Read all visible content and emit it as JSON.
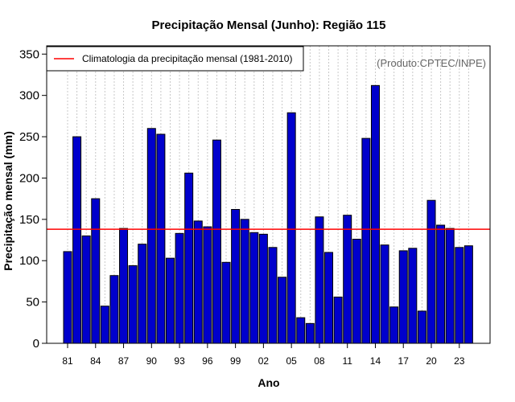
{
  "chart_data": {
    "type": "bar",
    "title": "Precipitação Mensal (Junho): Região 115",
    "xlabel": "Ano",
    "ylabel": "Precipitação mensal (mm)",
    "ylim": [
      0,
      360
    ],
    "yticks": [
      0,
      50,
      100,
      150,
      200,
      250,
      300,
      350
    ],
    "xtick_labels": [
      "81",
      "84",
      "87",
      "90",
      "93",
      "96",
      "99",
      "02",
      "05",
      "08",
      "11",
      "14",
      "17",
      "20",
      "23"
    ],
    "categories": [
      "1981",
      "1982",
      "1983",
      "1984",
      "1985",
      "1986",
      "1987",
      "1988",
      "1989",
      "1990",
      "1991",
      "1992",
      "1993",
      "1994",
      "1995",
      "1996",
      "1997",
      "1998",
      "1999",
      "2000",
      "2001",
      "2002",
      "2003",
      "2004",
      "2005",
      "2006",
      "2007",
      "2008",
      "2009",
      "2010",
      "2011",
      "2012",
      "2013",
      "2014",
      "2015",
      "2016",
      "2017",
      "2018",
      "2019",
      "2020",
      "2021",
      "2022",
      "2023",
      "2024"
    ],
    "values": [
      111,
      250,
      130,
      175,
      45,
      82,
      139,
      94,
      120,
      260,
      253,
      103,
      133,
      206,
      148,
      141,
      246,
      98,
      162,
      150,
      134,
      132,
      116,
      80,
      279,
      31,
      24,
      153,
      110,
      56,
      155,
      126,
      248,
      312,
      119,
      44,
      112,
      115,
      39,
      173,
      143,
      139,
      116,
      118
    ],
    "climatology": {
      "value": 138,
      "label": "Climatologia da precipitação mensal (1981-2010)",
      "color": "#ff0000"
    },
    "bar_color": "#0000cc",
    "grid": "vertical dotted",
    "legend_position": "top-left",
    "annotation": "(Produto:CPTEC/INPE)"
  }
}
